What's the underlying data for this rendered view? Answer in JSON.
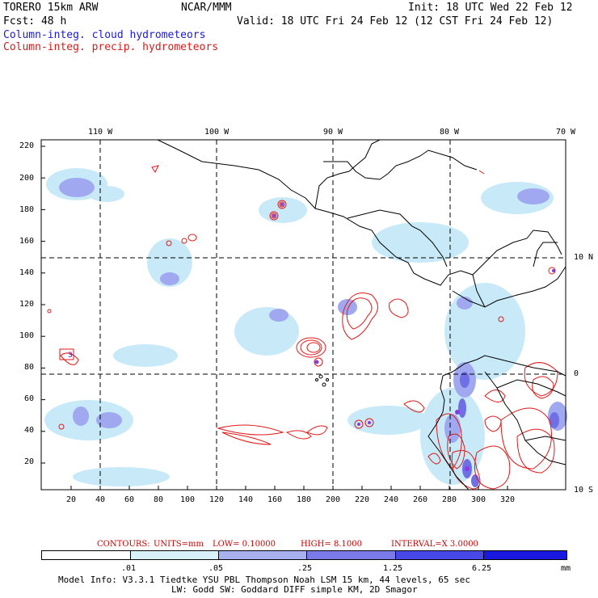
{
  "header": {
    "model": "TORERO  15km ARW",
    "org": "NCAR/MMM",
    "init": "Init: 18 UTC Wed 22 Feb 12",
    "fcst": "Fcst:   48 h",
    "valid": "Valid: 18 UTC Fri 24 Feb 12 (12 CST Fri 24 Feb 12)",
    "legend_cloud": "Column-integ. cloud hydrometeors",
    "legend_precip": "Column-integ. precip. hydrometeors"
  },
  "axes": {
    "top_lon_labels": [
      "110 W",
      "100 W",
      "90 W",
      "80 W",
      "70 W"
    ],
    "right_lat_labels": [
      "10 N",
      "0",
      "10 S"
    ],
    "left_y_ticks": [
      "220",
      "200",
      "180",
      "160",
      "140",
      "120",
      "100",
      "80",
      "60",
      "40",
      "20"
    ],
    "bottom_x_ticks": [
      "20",
      "40",
      "60",
      "80",
      "100",
      "120",
      "140",
      "160",
      "180",
      "200",
      "220",
      "240",
      "260",
      "280",
      "300",
      "320"
    ]
  },
  "contour_info": {
    "label_contours": "CONTOURS:",
    "label_units": "UNITS=mm",
    "label_low": "LOW= 0.10000",
    "label_high": "HIGH=  8.1000",
    "label_interval": "INTERVAL=X  3.0000"
  },
  "colorbar": {
    "labels": [
      ".01",
      ".05",
      ".25",
      "1.25",
      "6.25"
    ],
    "unit": "mm",
    "colors": [
      "#ffffff",
      "#d8f2fa",
      "#a8b0f0",
      "#7a7ae8",
      "#4848e8",
      "#1818e0"
    ]
  },
  "footer": {
    "line1": "Model Info: V3.3.1   Tiedtke YSU PBL  Thompson    Noah LSM  15 km,   44 levels,   65 sec",
    "line2": "LW: Godd SW: Goddard DIFF  simple KM, 2D Smagor"
  },
  "map_annotations": {
    "marker_label": "3"
  },
  "colors": {
    "cloud_light": "#c8eaf8",
    "cloud_mid": "#a0a8f0",
    "cloud_dark": "#6f6fe6",
    "precip_contour": "#e01818",
    "coast": "#000000"
  }
}
